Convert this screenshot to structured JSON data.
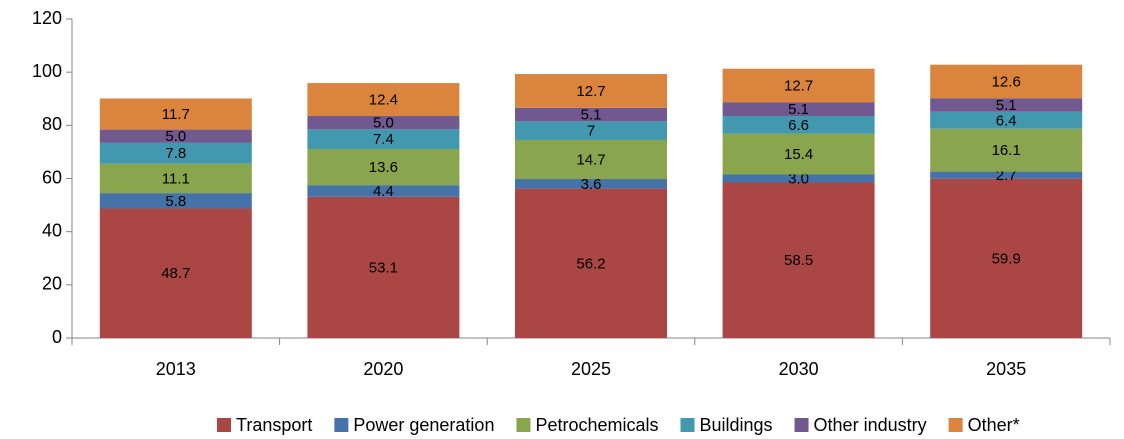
{
  "chart_data": {
    "type": "stacked_bar",
    "categories": [
      "2013",
      "2020",
      "2025",
      "2030",
      "2035"
    ],
    "series": [
      {
        "name": "Transport",
        "color": "#aa4643",
        "values": [
          48.7,
          53.1,
          56.2,
          58.5,
          59.9
        ],
        "value_labels": [
          "48.7",
          "53.1",
          "56.2",
          "58.5",
          "59.9"
        ]
      },
      {
        "name": "Power generation",
        "color": "#4572a7",
        "values": [
          5.8,
          4.4,
          3.6,
          3.0,
          2.7
        ],
        "value_labels": [
          "5.8",
          "4.4",
          "3.6",
          "3.0",
          "2.7"
        ]
      },
      {
        "name": "Petrochemicals",
        "color": "#89a54e",
        "values": [
          11.1,
          13.6,
          14.7,
          15.4,
          16.1
        ],
        "value_labels": [
          "11.1",
          "13.6",
          "14.7",
          "15.4",
          "16.1"
        ]
      },
      {
        "name": "Buildings",
        "color": "#4198af",
        "values": [
          7.8,
          7.4,
          7,
          6.6,
          6.4
        ],
        "value_labels": [
          "7.8",
          "7.4",
          "7",
          "6.6",
          "6.4"
        ]
      },
      {
        "name": "Other industry",
        "color": "#71588f",
        "values": [
          5.0,
          5.0,
          5.1,
          5.1,
          5.1
        ],
        "value_labels": [
          "5.0",
          "5.0",
          "5.1",
          "5.1",
          "5.1"
        ]
      },
      {
        "name": "Other*",
        "color": "#db843d",
        "values": [
          11.7,
          12.4,
          12.7,
          12.7,
          12.6
        ],
        "value_labels": [
          "11.7",
          "12.4",
          "12.7",
          "12.7",
          "12.6"
        ]
      }
    ],
    "ylim": [
      0,
      120
    ],
    "yticks": [
      0,
      20,
      40,
      60,
      80,
      100,
      120
    ],
    "grid": false,
    "legend": "bottom"
  }
}
